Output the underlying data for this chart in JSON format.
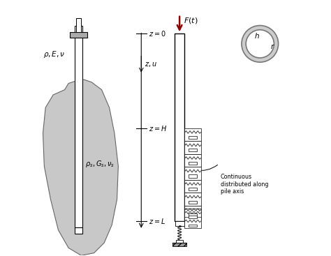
{
  "bg_color": "#ffffff",
  "soil_color": "#c8c8c8",
  "soil_edge_color": "#666666",
  "arrow_color": "#8b0000",
  "cap_color": "#aaaaaa",
  "fig_width": 4.74,
  "fig_height": 3.67,
  "dpi": 100,
  "xlim": [
    0,
    10
  ],
  "ylim": [
    0,
    10
  ],
  "soil_x": [
    1.05,
    0.6,
    0.3,
    0.2,
    0.25,
    0.5,
    0.8,
    1.2,
    1.7,
    2.2,
    2.6,
    2.9,
    3.1,
    3.15,
    3.0,
    2.8,
    2.5,
    2.1,
    1.8,
    1.5,
    1.2,
    1.05
  ],
  "soil_y": [
    6.5,
    6.3,
    5.8,
    4.8,
    3.5,
    2.2,
    1.0,
    0.3,
    0.0,
    0.1,
    0.5,
    1.2,
    2.2,
    3.5,
    4.8,
    5.8,
    6.5,
    6.8,
    6.9,
    6.85,
    6.75,
    6.5
  ]
}
